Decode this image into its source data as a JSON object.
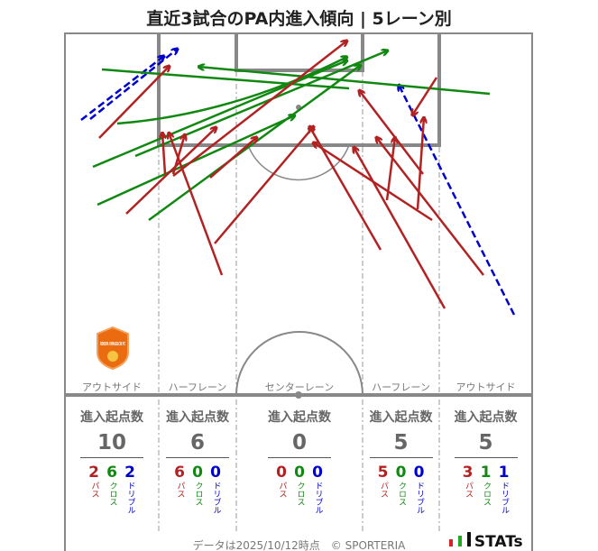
{
  "title": "直近3試合のPA内進入傾向 | 5レーン別",
  "colors": {
    "pass": "#b22222",
    "cross": "#118811",
    "dribble": "#0000cc",
    "line": "#888888"
  },
  "legend_labels": {
    "pass": "パス",
    "cross": "クロス",
    "dribble": "ドリブル"
  },
  "lanes": [
    {
      "name": "アウトサイド",
      "header": "進入起点数",
      "total": "10",
      "pass": "2",
      "cross": "6",
      "dribble": "2"
    },
    {
      "name": "ハーフレーン",
      "header": "進入起点数",
      "total": "6",
      "pass": "6",
      "cross": "0",
      "dribble": "0"
    },
    {
      "name": "センターレーン",
      "header": "進入起点数",
      "total": "0",
      "pass": "0",
      "cross": "0",
      "dribble": "0"
    },
    {
      "name": "ハーフレーン",
      "header": "進入起点数",
      "total": "5",
      "pass": "5",
      "cross": "0",
      "dribble": "0"
    },
    {
      "name": "アウトサイド",
      "header": "進入起点数",
      "total": "5",
      "pass": "3",
      "cross": "1",
      "dribble": "1"
    }
  ],
  "team_badge": "RENOFA YAMAGUCHI FC",
  "footer": "データは2025/10/12時点　© SPORTERIA",
  "brand": "STATs"
}
